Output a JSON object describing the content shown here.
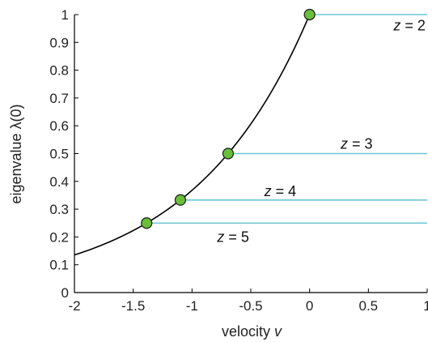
{
  "chart_data": {
    "type": "line",
    "xlabel": "velocity",
    "xlabel_symbol": "v",
    "ylabel": "eigenvalue λ(0)",
    "xlim": [
      -2,
      1
    ],
    "ylim": [
      0,
      1
    ],
    "xticks": [
      -2,
      -1.5,
      -1,
      -0.5,
      0,
      0.5,
      1
    ],
    "xtick_labels": [
      "-2",
      "-1.5",
      "-1",
      "-0.5",
      "0",
      "0.5",
      "1"
    ],
    "yticks": [
      0,
      0.1,
      0.2,
      0.3,
      0.4,
      0.5,
      0.6,
      0.7,
      0.8,
      0.9,
      1
    ],
    "ytick_labels": [
      "0",
      "0.1",
      "0.2",
      "0.3",
      "0.4",
      "0.5",
      "0.6",
      "0.7",
      "0.8",
      "0.9",
      "1"
    ],
    "grid": false,
    "curve": {
      "x": [
        -2,
        -1.8,
        -1.6,
        -1.386,
        -1.2,
        -1.099,
        -1.0,
        -0.8,
        -0.693,
        -0.6,
        -0.4,
        -0.2,
        0
      ],
      "y": [
        0.135,
        0.165,
        0.202,
        0.25,
        0.301,
        0.333,
        0.368,
        0.449,
        0.5,
        0.549,
        0.67,
        0.819,
        1.0
      ],
      "color": "#000000"
    },
    "points": [
      {
        "x": 0,
        "y": 1.0
      },
      {
        "x": -0.693,
        "y": 0.5
      },
      {
        "x": -1.099,
        "y": 0.333
      },
      {
        "x": -1.386,
        "y": 0.25
      }
    ],
    "point_color": "#6abf3a",
    "point_edge_color": "#1a1a1a",
    "levels": [
      {
        "label_prefix": "z",
        "label_value": "= 2",
        "y": 1.0,
        "x_start": 0,
        "label_at": [
          0.85,
          0.96
        ]
      },
      {
        "label_prefix": "z",
        "label_value": "= 3",
        "y": 0.5,
        "x_start": -0.693,
        "label_at": [
          0.4,
          0.535
        ]
      },
      {
        "label_prefix": "z",
        "label_value": "= 4",
        "y": 0.333,
        "x_start": -1.099,
        "label_at": [
          -0.25,
          0.365
        ]
      },
      {
        "label_prefix": "z",
        "label_value": "= 5",
        "y": 0.25,
        "x_start": -1.386,
        "label_at": [
          -0.65,
          0.2
        ]
      }
    ],
    "level_color": "#6cc8d6"
  }
}
